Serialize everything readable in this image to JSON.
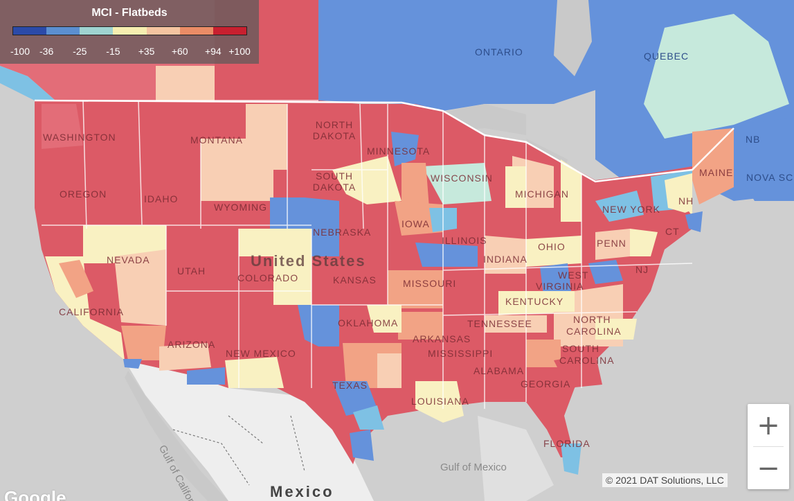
{
  "legend": {
    "title": "MCI - Flatbeds",
    "colors": [
      "#2b4aa8",
      "#5b8fd0",
      "#9fd3d0",
      "#f6eeb0",
      "#f4c4a0",
      "#ea8c66",
      "#c8202f"
    ],
    "ticks": [
      "-100",
      "-36",
      "-25",
      "-15",
      "+35",
      "+60",
      "+94",
      "+100"
    ]
  },
  "palette": {
    "strong_red": "#dc5a66",
    "red": "#e36d78",
    "salmon": "#f2a385",
    "peach": "#f8cfb4",
    "yellow": "#f9f1c2",
    "mint": "#c6e9dc",
    "light_blue": "#7ec1e4",
    "blue": "#6592db",
    "land": "#e9e9e9",
    "water": "#c9c9c9"
  },
  "labels": {
    "states": [
      "WASHINGTON",
      "MONTANA",
      "NORTH DAKOTA",
      "MINNESOTA",
      "OREGON",
      "IDAHO",
      "SOUTH DAKOTA",
      "WISCONSIN",
      "MICHIGAN",
      "WYOMING",
      "NEW YORK",
      "MAINE",
      "NEBRASKA",
      "IOWA",
      "ILLINOIS",
      "OHIO",
      "PENN",
      "NEVADA",
      "UTAH",
      "COLORADO",
      "KANSAS",
      "MISSOURI",
      "INDIANA",
      "WEST",
      "VIRGINIA",
      "KENTUCKY",
      "CALIFORNIA",
      "OKLAHOMA",
      "TENNESSEE",
      "NORTH",
      "CAROLINA",
      "ARIZONA",
      "NEW MEXICO",
      "ARKANSAS",
      "MISSISSIPPI",
      "SOUTH",
      "CAROLINA",
      "ALABAMA",
      "GEORGIA",
      "TEXAS",
      "LOUISIANA",
      "FLORIDA",
      "NH",
      "CT",
      "NJ",
      "NB",
      "NOVA SC"
    ],
    "provinces": [
      "ONTARIO",
      "QUEBEC"
    ],
    "country": "United States",
    "mexico": "Mexico",
    "gulf_california": "Gulf of California",
    "gulf_mexico": "Gulf of Mexico"
  },
  "zoom": {
    "in": "+",
    "out": "−"
  },
  "copyright": "© 2021 DAT Solutions, LLC",
  "google": "Google"
}
